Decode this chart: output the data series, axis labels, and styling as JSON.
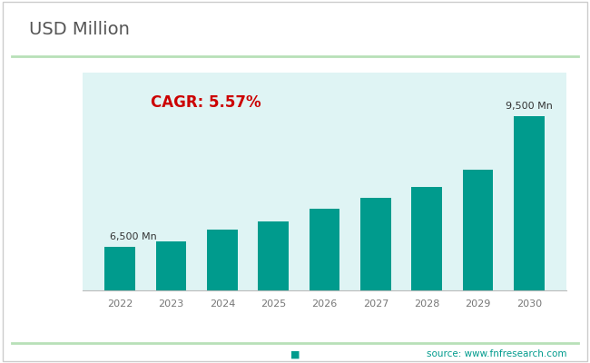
{
  "title": "USD Million",
  "ylabel": "USD Million",
  "source_text": "source: www.fnfresearch.com",
  "cagr_text": "CAGR: 5.57%",
  "categories": [
    "2022",
    "2023",
    "2024",
    "2025",
    "2026",
    "2027",
    "2028",
    "2029",
    "2030"
  ],
  "values": [
    6500,
    6630,
    6900,
    7080,
    7380,
    7620,
    7870,
    8280,
    9500
  ],
  "first_label": "6,500 Mn",
  "last_label": "9,500 Mn",
  "ylim_min": 5500,
  "ylim_max": 10500,
  "bg_color": "#ffffff",
  "plot_bg_color": "#dff4f4",
  "bar_color_hex": "#009B8D",
  "title_fontsize": 14,
  "ylabel_fontsize": 10,
  "tick_fontsize": 8,
  "annotation_fontsize": 8,
  "cagr_fontsize": 12,
  "source_fontsize": 7.5,
  "border_color": "#b8e0b8"
}
